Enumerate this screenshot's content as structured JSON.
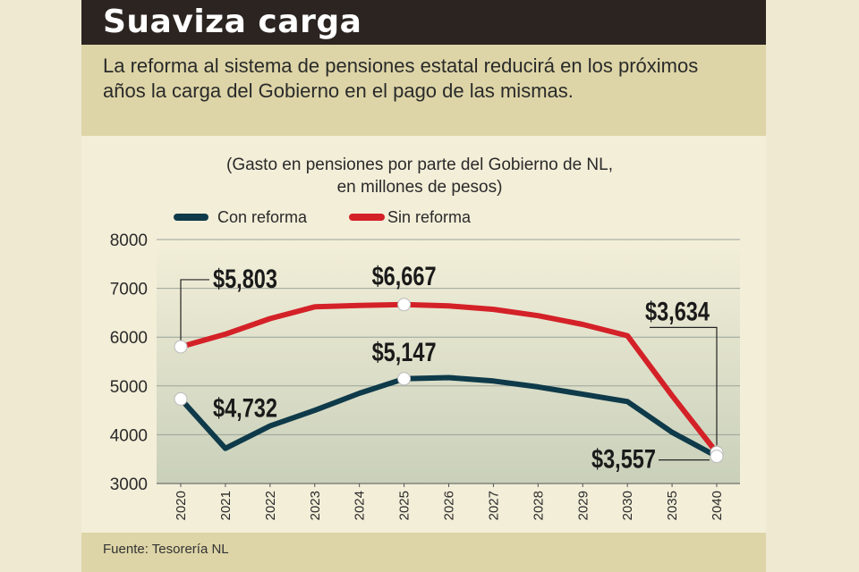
{
  "header": {
    "title": "Suaviza carga",
    "subtitle": "La reforma al sistema de pensiones estatal reducirá en los próximos años la carga del Gobierno en el pago de las mismas."
  },
  "footer": {
    "source": "Fuente: Tesorería NL"
  },
  "colors": {
    "con": "#0e3a4a",
    "sin": "#d42128",
    "grid": "#9aa39a"
  },
  "chart_data": {
    "type": "line",
    "title": "(Gasto en pensiones por parte del Gobierno de NL,",
    "subtitle": "en millones de pesos)",
    "categories": [
      "2020",
      "2021",
      "2022",
      "2023",
      "2024",
      "2025",
      "2026",
      "2027",
      "2028",
      "2029",
      "2030",
      "2035",
      "2040"
    ],
    "series": [
      {
        "name": "Con reforma",
        "values": [
          4732,
          3720,
          4180,
          4500,
          4850,
          5147,
          5170,
          5100,
          4980,
          4830,
          4680,
          4050,
          3557
        ]
      },
      {
        "name": "Sin reforma",
        "values": [
          5803,
          6060,
          6380,
          6620,
          6650,
          6667,
          6640,
          6570,
          6440,
          6260,
          6030,
          4800,
          3634
        ]
      }
    ],
    "ylim": [
      3000,
      8000
    ],
    "yticks": [
      3000,
      4000,
      5000,
      6000,
      7000,
      8000
    ],
    "grid": true,
    "legend": "top",
    "annotations": [
      {
        "label": "$5,803",
        "series": 1,
        "index": 0
      },
      {
        "label": "$6,667",
        "series": 1,
        "index": 5
      },
      {
        "label": "$3,634",
        "series": 1,
        "index": 12
      },
      {
        "label": "$4,732",
        "series": 0,
        "index": 0
      },
      {
        "label": "$5,147",
        "series": 0,
        "index": 5
      },
      {
        "label": "$3,557",
        "series": 0,
        "index": 12
      }
    ]
  }
}
